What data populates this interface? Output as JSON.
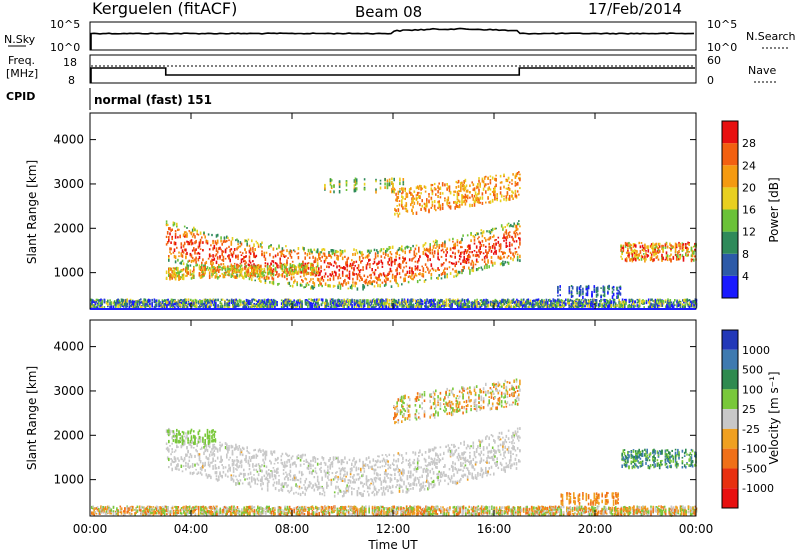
{
  "header": {
    "station": "Kerguelen (fitACF)",
    "beam": "Beam 08",
    "date": "17/Feb/2014"
  },
  "top_panels": {
    "nsky_label": "N.Sky",
    "nsky_ticks": [
      "10^5",
      "10^0"
    ],
    "nsearch_label": "N.Search",
    "nsearch_ticks": [
      "10^5",
      "10^0"
    ],
    "freq_label_line1": "Freq.",
    "freq_label_line2": "[MHz]",
    "freq_ticks": [
      "18",
      "8"
    ],
    "nave_label": "Nave",
    "nave_ticks": [
      "60",
      "0"
    ],
    "cpid_label": "CPID",
    "cpid_text": "normal (fast) 151"
  },
  "colors": {
    "power_scale": [
      "#1a1aff",
      "#2d5aa8",
      "#2f8a5a",
      "#6bc238",
      "#e8d020",
      "#f59a10",
      "#f36010",
      "#e81010"
    ],
    "velocity_scale": [
      "#2238b8",
      "#3f7ab0",
      "#2f8a4f",
      "#79c83a",
      "#c8c8c8",
      "#f0a020",
      "#f07018",
      "#e83010",
      "#e81010"
    ]
  },
  "chart_data": [
    {
      "type": "heatmap",
      "name": "power",
      "ylabel": "Slant Range [km]",
      "yticks": [
        "1000",
        "2000",
        "3000",
        "4000"
      ],
      "ylim": [
        180,
        4600
      ],
      "xlim_hours": [
        0,
        24
      ],
      "colorbar_label": "Power [dB]",
      "colorbar_ticks": [
        "4",
        "8",
        "12",
        "16",
        "20",
        "24",
        "28"
      ],
      "colorbar_range": [
        0,
        32
      ]
    },
    {
      "type": "heatmap",
      "name": "velocity",
      "ylabel": "Slant Range [km]",
      "yticks": [
        "1000",
        "2000",
        "3000",
        "4000"
      ],
      "ylim": [
        180,
        4600
      ],
      "xlim_hours": [
        0,
        24
      ],
      "xlabel": "Time UT",
      "xticks": [
        "00:00",
        "04:00",
        "08:00",
        "12:00",
        "16:00",
        "20:00",
        "00:00"
      ],
      "colorbar_label": "Velocity [m s⁻¹]",
      "colorbar_ticks": [
        "1000",
        "500",
        "100",
        "25",
        "-25",
        "-100",
        "-500",
        "-1000"
      ]
    }
  ]
}
